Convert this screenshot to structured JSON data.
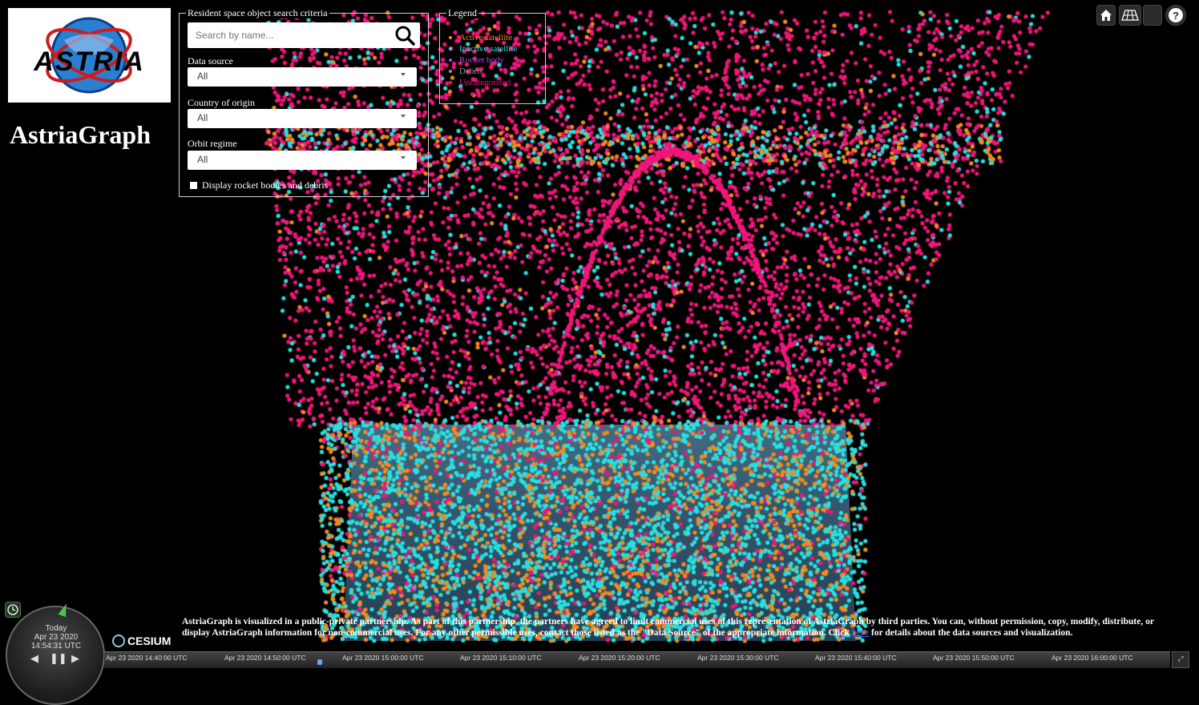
{
  "app": {
    "title": "AstriaGraph",
    "logo_text": "ASTRIA"
  },
  "search_panel": {
    "legend": "Resident space object search criteria",
    "search_placeholder": "Search by name...",
    "data_source": {
      "label": "Data source",
      "value": "All"
    },
    "country": {
      "label": "Country of origin",
      "value": "All"
    },
    "orbit": {
      "label": "Orbit regime",
      "value": "All"
    },
    "checkbox_label": "Display rocket bodies and debris"
  },
  "legend_panel": {
    "title": "Legend",
    "items": [
      {
        "label": "Active satellite",
        "color": "#f08c1e"
      },
      {
        "label": "Inactive satellite",
        "color": "#29e0e0"
      },
      {
        "label": "Rocket body",
        "color": "#b04adf"
      },
      {
        "label": "Debris",
        "color": "#9a9a9a"
      },
      {
        "label": "Uncategorized",
        "color": "#f0167a"
      }
    ]
  },
  "toolbar": {
    "icons": [
      "home-icon",
      "scene-mode-icon",
      "blank-button",
      "help-icon"
    ]
  },
  "animation": {
    "day": "Today",
    "date": "Apr 23 2020",
    "time": "14:54:31 UTC"
  },
  "cesium_label": "CESIUM",
  "credit": {
    "text_before": "AstriaGraph is visualized in a public-private partnership. As part of this partnership, the partners have agreed to limit commercial uses of this representation of AstriaGraph by third parties. You can, without permission, copy, modify, distribute, or display AstriaGraph information for non-commercial uses. For any other permissible uses, contact those listed as the \"Data Source\" of the appropriate information. Click ",
    "link": "here",
    "text_after": " for details about the data sources and visualization."
  },
  "timeline": {
    "labels": [
      "Apr 23 2020 14:40:00 UTC",
      "Apr 23 2020 14:50:00 UTC",
      "Apr 23 2020 15:00:00 UTC",
      "Apr 23 2020 15:10:00 UTC",
      "Apr 23 2020 15:20:00 UTC",
      "Apr 23 2020 15:30:00 UTC",
      "Apr 23 2020 15:40:00 UTC",
      "Apr 23 2020 15:50:00 UTC",
      "Apr 23 2020 16:00:00 UTC"
    ]
  }
}
